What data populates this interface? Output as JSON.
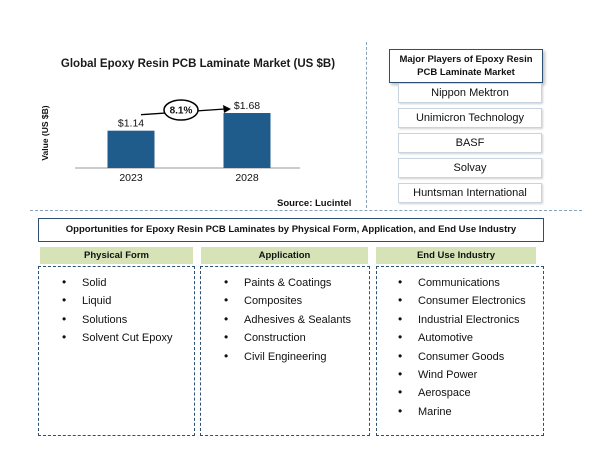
{
  "chart_data": {
    "type": "bar",
    "title": "Global Epoxy Resin PCB Laminate Market (US $B)",
    "ylabel": "Value (US $B)",
    "categories": [
      "2023",
      "2028"
    ],
    "values": [
      1.14,
      1.68
    ],
    "value_labels": [
      "$1.14",
      "$1.68"
    ],
    "growth_label": "8.1%",
    "ylim": [
      0,
      2.2
    ],
    "bar_color": "#1f5c8c",
    "grid": false
  },
  "source": "Source: Lucintel",
  "players": {
    "title": "Major Players of Epoxy Resin PCB Laminate Market",
    "items": [
      "Nippon Mektron",
      "Unimicron Technology",
      "BASF",
      "Solvay",
      "Huntsman International"
    ]
  },
  "opportunities": {
    "title": "Opportunities for Epoxy Resin PCB Laminates by Physical Form, Application, and End Use Industry",
    "header_color": "#d5e3b6",
    "columns": [
      {
        "header": "Physical Form",
        "items": [
          "Solid",
          "Liquid",
          "Solutions",
          "Solvent Cut Epoxy"
        ]
      },
      {
        "header": "Application",
        "items": [
          "Paints & Coatings",
          "Composites",
          "Adhesives & Sealants",
          "Construction",
          "Civil Engineering"
        ]
      },
      {
        "header": "End Use Industry",
        "items": [
          "Communications",
          "Consumer Electronics",
          "Industrial Electronics",
          "Automotive",
          "Consumer Goods",
          "Wind Power",
          "Aerospace",
          "Marine"
        ]
      }
    ]
  }
}
